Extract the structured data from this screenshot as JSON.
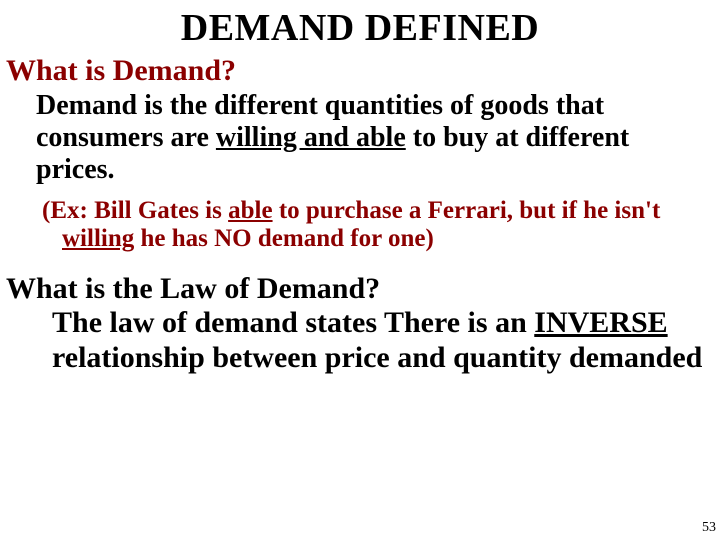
{
  "title": "DEMAND DEFINED",
  "q1": "What is Demand?",
  "def1_pre": "Demand is the different quantities of goods that consumers are ",
  "def1_u": "willing and able",
  "def1_post": " to buy at different prices.",
  "ex_pre": "(Ex: Bill Gates is ",
  "ex_u1": "able",
  "ex_mid": " to purchase a Ferrari, but if he isn't ",
  "ex_u2": "willing",
  "ex_post": " he has NO demand for one)",
  "q2": "What is the Law of Demand?",
  "def2_pre": "The law of demand states There is an ",
  "def2_u": "INVERSE",
  "def2_post": " relationship between price and quantity demanded",
  "pagenum": "53",
  "colors": {
    "accent": "#8b0000",
    "text": "#000000",
    "background": "#ffffff"
  },
  "fonts": {
    "family": "Times New Roman",
    "title_size_pt": 38,
    "heading_size_pt": 30,
    "body_size_pt": 28,
    "example_size_pt": 25,
    "pagenum_size_pt": 14
  }
}
